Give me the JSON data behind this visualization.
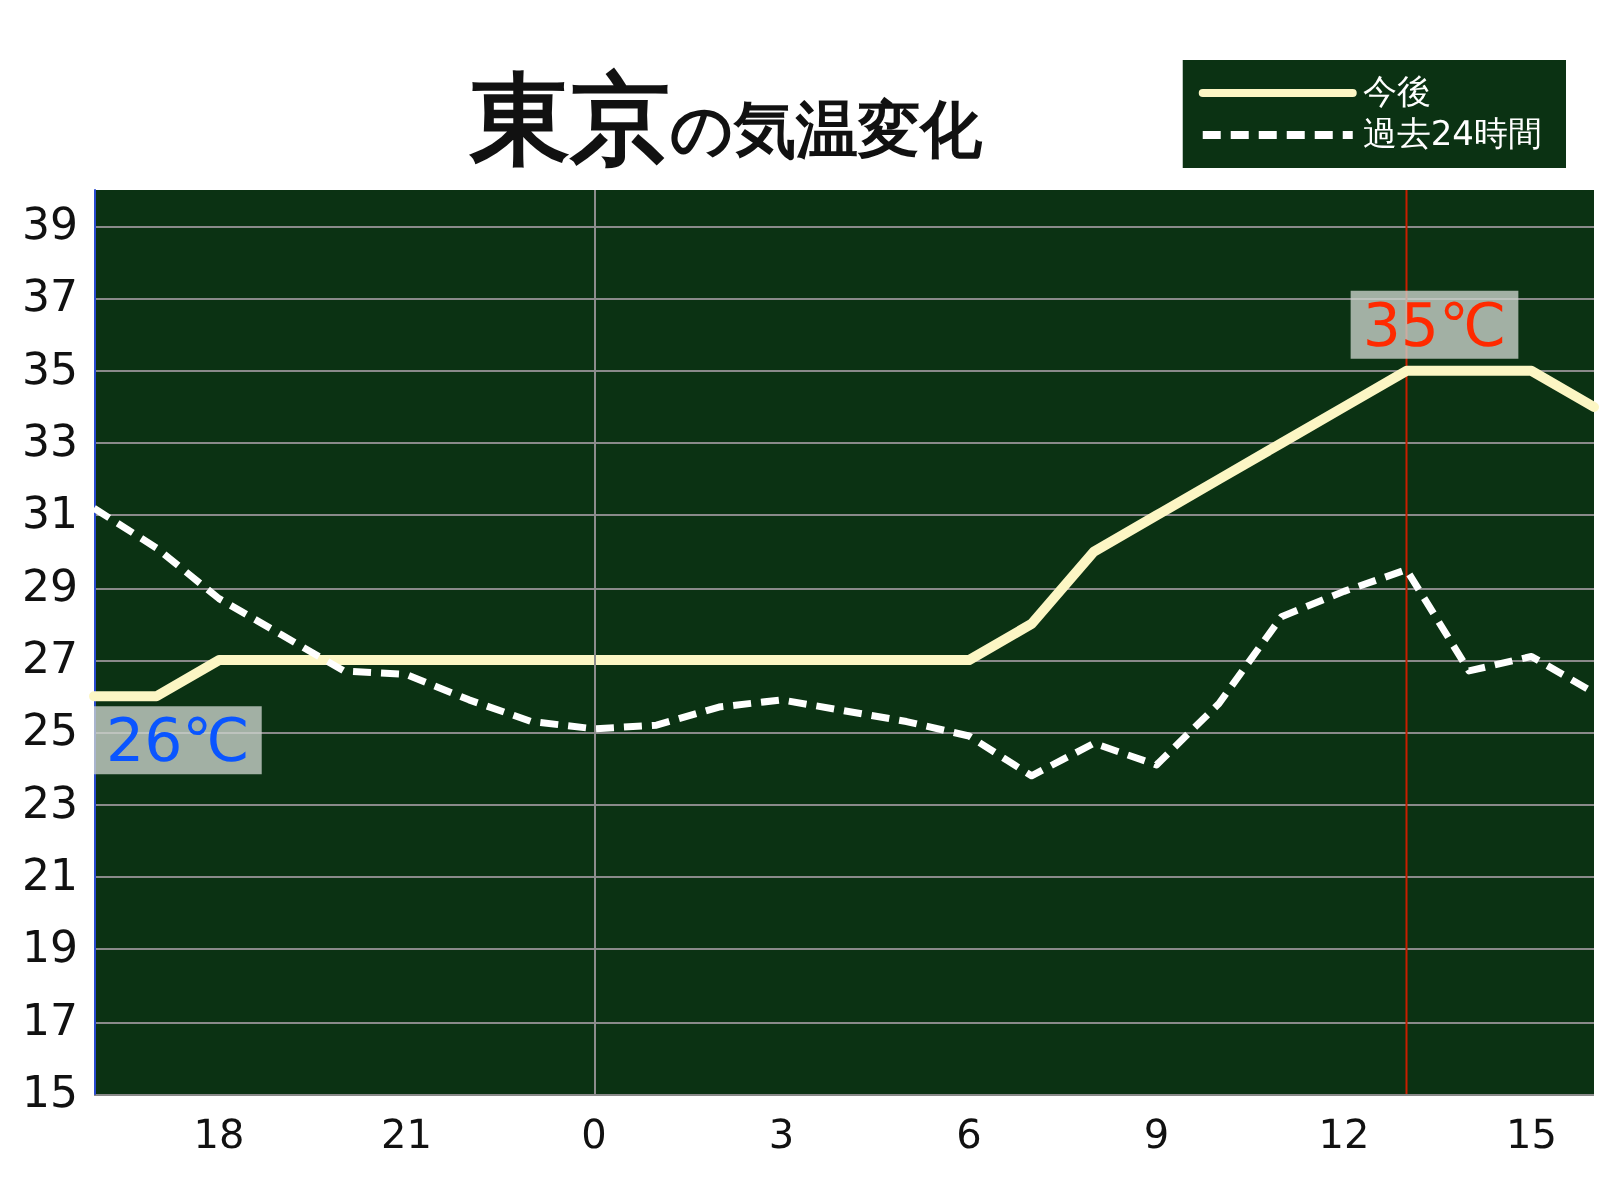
{
  "chart_data": {
    "type": "line",
    "title": "東京の気温変化",
    "categories": [
      null,
      null,
      "18",
      null,
      null,
      "21",
      null,
      null,
      "0",
      null,
      null,
      "3",
      null,
      null,
      "6",
      null,
      null,
      "9",
      null,
      null,
      "12",
      null,
      null,
      "15",
      null
    ],
    "ylim": [
      15,
      40
    ],
    "yticks": [
      15,
      17,
      19,
      21,
      23,
      25,
      27,
      29,
      31,
      33,
      35,
      37,
      39
    ],
    "series": [
      {
        "name": "今後",
        "color": "#fcf6c4",
        "line_style": "solid",
        "values": [
          26,
          26,
          27,
          27,
          27,
          27,
          27,
          27,
          27,
          27,
          27,
          27,
          27,
          27,
          27,
          28,
          30,
          31,
          32,
          33,
          34,
          35,
          35,
          35,
          34
        ]
      },
      {
        "name": "過去24時間",
        "color": "#ffffff",
        "line_style": "dashed",
        "values": [
          31.2,
          30.1,
          28.7,
          27.7,
          26.7,
          26.6,
          25.9,
          25.3,
          25.1,
          25.2,
          25.7,
          25.9,
          25.6,
          25.3,
          24.9,
          23.8,
          24.7,
          24.1,
          25.8,
          28.2,
          28.9,
          29.5,
          26.7,
          27.1,
          26.1
        ]
      }
    ],
    "ref_lines": [
      {
        "axis": "x",
        "value": "0",
        "color": "#8c8c8c"
      }
    ],
    "annotations": [
      {
        "text": "35℃",
        "y": 35
      },
      {
        "text": "26℃",
        "y": 26
      }
    ],
    "grid": "y",
    "legend": "top right",
    "marker": "none"
  }
}
